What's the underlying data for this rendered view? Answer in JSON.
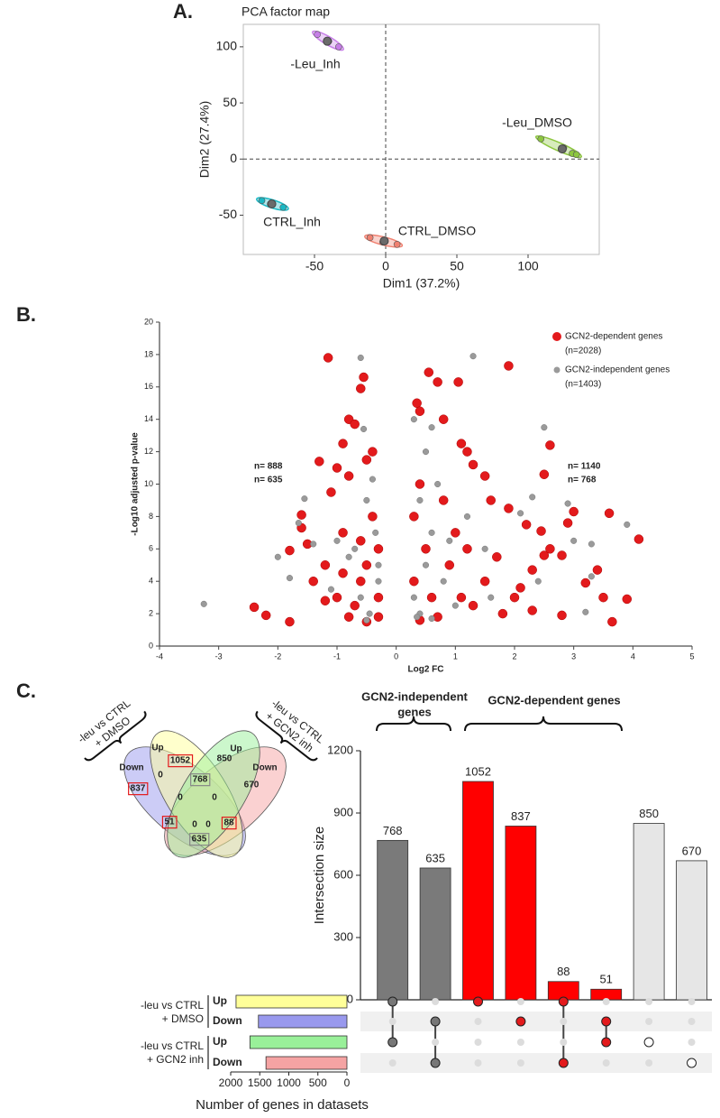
{
  "panels": [
    "A.",
    "B.",
    "C."
  ],
  "chart_data": [
    {
      "type": "scatter",
      "title": "PCA factor map",
      "xlabel": "Dim1 (37.2%)",
      "ylabel": "Dim2 (27.4%)",
      "xlim": [
        -100,
        150
      ],
      "ylim": [
        -85,
        120
      ],
      "xticks": [
        -50,
        0,
        50,
        100
      ],
      "yticks": [
        -50,
        0,
        50,
        100
      ],
      "zero_lines": true,
      "series": [
        {
          "name": "-Leu_Inh",
          "color": "#c77ee8",
          "x": [
            -48,
            -40,
            -33
          ],
          "y": [
            111,
            105,
            100
          ],
          "centroid_x": -41,
          "centroid_y": 105
        },
        {
          "name": "-Leu_DMSO",
          "color": "#8dc63f",
          "x": [
            109,
            125,
            131,
            134
          ],
          "y": [
            18,
            10,
            5,
            4
          ],
          "centroid_x": 124,
          "centroid_y": 9
        },
        {
          "name": "CTRL_Inh",
          "color": "#1ab8c4",
          "x": [
            -87,
            -81,
            -72
          ],
          "y": [
            -37,
            -40,
            -43
          ],
          "centroid_x": -80,
          "centroid_y": -40
        },
        {
          "name": "CTRL_DMSO",
          "color": "#f08070",
          "x": [
            -11,
            -2,
            8
          ],
          "y": [
            -70,
            -74,
            -76
          ],
          "centroid_x": -1,
          "centroid_y": -73
        }
      ]
    },
    {
      "type": "scatter",
      "xlabel": "Log2 FC",
      "ylabel": "-Log10 adjusted p-value",
      "xlim": [
        -4,
        5
      ],
      "ylim": [
        0,
        20
      ],
      "xticks": [
        -4,
        -3,
        -2,
        -1,
        0,
        1,
        2,
        3,
        4,
        5
      ],
      "yticks": [
        0,
        2,
        4,
        6,
        8,
        10,
        12,
        14,
        16,
        18,
        20
      ],
      "legend": "top-right",
      "series": [
        {
          "name": "GCN2-dependent genes",
          "count_label": "(n=2028)",
          "color": "#e31a1c",
          "x": [
            -1.15,
            -0.6,
            -0.55,
            -0.8,
            -0.7,
            -1.3,
            -0.9,
            -1.0,
            -1.6,
            -1.6,
            -1.5,
            -1.8,
            -2.4,
            -2.2,
            -1.8,
            -1.1,
            -0.8,
            -0.5,
            -0.4,
            -1.2,
            -0.9,
            -1.4,
            -1.0,
            -0.7,
            -0.5,
            -0.3,
            -0.4,
            -0.3,
            -0.6,
            -0.8,
            -0.5,
            -0.3,
            -0.9,
            -1.2,
            -0.6,
            0.55,
            0.35,
            0.7,
            1.05,
            1.9,
            0.4,
            0.8,
            1.2,
            1.3,
            1.1,
            1.5,
            1.6,
            2.6,
            2.5,
            1.9,
            2.2,
            2.45,
            3.0,
            2.9,
            3.6,
            2.5,
            2.8,
            2.6,
            2.3,
            2.1,
            3.2,
            3.4,
            3.5,
            3.9,
            4.1,
            3.65,
            2.8,
            0.5,
            0.8,
            0.4,
            0.3,
            0.6,
            0.9,
            1.1,
            1.3,
            1.5,
            1.8,
            0.4,
            0.7,
            1.0,
            1.2,
            0.3,
            1.7,
            2.0,
            2.3
          ],
          "y": [
            17.8,
            15.9,
            16.6,
            14,
            13.7,
            11.4,
            12.5,
            11,
            8.1,
            7.3,
            6.3,
            5.9,
            2.4,
            1.9,
            1.5,
            9.5,
            10.5,
            11.5,
            12,
            5,
            7,
            4,
            3,
            2.5,
            5,
            3,
            8,
            6,
            4,
            1.8,
            1.5,
            1.8,
            4.5,
            2.8,
            6.5,
            16.9,
            15,
            16.3,
            16.3,
            17.3,
            14.5,
            14,
            12,
            11.2,
            12.5,
            10.5,
            9,
            12.4,
            10.6,
            8.5,
            7.5,
            7.1,
            8.3,
            7.6,
            8.2,
            5.6,
            5.6,
            6,
            4.7,
            3.6,
            3.9,
            4.7,
            3.0,
            2.9,
            6.6,
            1.5,
            1.9,
            6,
            9,
            10,
            4,
            3,
            5,
            3,
            2.5,
            4,
            2,
            1.6,
            1.8,
            7,
            6,
            8,
            5.5,
            3,
            2.2
          ]
        },
        {
          "name": "GCN2-independent genes",
          "count_label": "(n=1403)",
          "color": "#9a9a9a",
          "x": [
            -3.25,
            -0.6,
            -0.55,
            -1.55,
            -1.65,
            -2.0,
            -1.4,
            -1.8,
            -1.1,
            -0.5,
            -0.4,
            -0.7,
            -0.3,
            -0.45,
            -0.3,
            -0.6,
            -0.8,
            -0.35,
            -0.5,
            -1.0,
            0.3,
            0.5,
            1.3,
            0.6,
            2.5,
            2.3,
            2.1,
            2.9,
            3.3,
            3.0,
            3.3,
            3.9,
            3.2,
            2.4,
            0.4,
            0.6,
            0.3,
            0.5,
            0.8,
            0.4,
            1.0,
            0.7,
            1.2,
            1.5,
            0.9,
            0.35,
            1.6,
            0.6
          ],
          "y": [
            2.6,
            17.8,
            13.4,
            9.1,
            7.6,
            5.5,
            6.3,
            4.2,
            3.5,
            9,
            10.3,
            6,
            5,
            2,
            4,
            3,
            5.5,
            7,
            1.6,
            6.5,
            14,
            12,
            17.9,
            13.5,
            13.5,
            9.2,
            8.2,
            8.8,
            6.3,
            6.5,
            4.3,
            7.5,
            2.1,
            4,
            9,
            7,
            3,
            5,
            4,
            2,
            2.5,
            10,
            8,
            6,
            6.5,
            1.8,
            3,
            1.7
          ]
        }
      ],
      "annotations": [
        {
          "text": "n= 888",
          "color": "#e31a1c"
        },
        {
          "text": "n= 635",
          "color": "#888888"
        },
        {
          "text": "n= 1140",
          "color": "#e31a1c"
        },
        {
          "text": "n= 768",
          "color": "#888888"
        }
      ]
    },
    {
      "type": "bar",
      "ylabel": "Intersection size",
      "ylim": [
        0,
        1200
      ],
      "yticks": [
        0,
        300,
        600,
        900,
        1200
      ],
      "values": [
        768,
        635,
        1052,
        837,
        88,
        51,
        850,
        670
      ],
      "colors": [
        "#7a7a7a",
        "#7a7a7a",
        "#ff0000",
        "#ff0000",
        "#ff0000",
        "#ff0000",
        "#e6e6e6",
        "#e6e6e6"
      ],
      "matrix": [
        [
          1,
          0,
          1,
          0
        ],
        [
          0,
          1,
          0,
          1
        ],
        [
          1,
          0,
          0,
          0
        ],
        [
          0,
          1,
          0,
          0
        ],
        [
          1,
          0,
          0,
          1
        ],
        [
          0,
          1,
          1,
          0
        ],
        [
          0,
          0,
          1,
          0
        ],
        [
          0,
          0,
          0,
          1
        ]
      ],
      "dot_colors": [
        "#777777",
        "#777777",
        "#e31a1c",
        "#e31a1c",
        "#e31a1c",
        "#e31a1c",
        "#ffffff",
        "#ffffff"
      ],
      "annotations": [
        {
          "lines": [
            "GCN2-independent",
            "genes"
          ],
          "color": "#8a8a8a"
        },
        {
          "lines": [
            "GCN2-dependent genes"
          ],
          "color": "#e31a1c"
        }
      ]
    },
    {
      "type": "barh",
      "xlabel": "Number of genes in datasets",
      "xlim": [
        2000,
        0
      ],
      "xticks": [
        2000,
        1500,
        1000,
        500,
        0
      ],
      "categories": [
        "Up",
        "Down",
        "Up",
        "Down"
      ],
      "label_colors": [
        "#e0a820",
        "#3a7bd5",
        "#1a9a1a",
        "#e36a6a"
      ],
      "colors": [
        "#ffff99",
        "#9999ee",
        "#99f099",
        "#f5a3a3"
      ],
      "values": [
        1908,
        1523,
        1669,
        1393
      ],
      "groups": [
        {
          "lines": [
            "-leu vs CTRL",
            "+ DMSO"
          ]
        },
        {
          "lines": [
            "-leu vs CTRL",
            "+ GCN2 inh"
          ]
        }
      ]
    }
  ],
  "venn": {
    "set_labels": [
      "Up",
      "Down",
      "Up",
      "Down"
    ],
    "set_colors": [
      "#e0a820",
      "#3a7bd5",
      "#1a9a1a",
      "#e36a6a"
    ],
    "fill_colors": [
      "#ffff99",
      "#9999ee",
      "#99f099",
      "#f5a3a3"
    ],
    "groups": [
      {
        "lines": [
          "-leu vs CTRL",
          "+ DMSO"
        ]
      },
      {
        "lines": [
          "-leu vs CTRL",
          "+ GCN2 inh"
        ]
      }
    ],
    "regions": [
      {
        "value": 1052,
        "box": "#e31a1c"
      },
      {
        "value": 837,
        "box": "#e31a1c"
      },
      {
        "value": 850,
        "box": null
      },
      {
        "value": 670,
        "box": null
      },
      {
        "value": 768,
        "box": "#888888"
      },
      {
        "value": 0,
        "box": null
      },
      {
        "value": 0,
        "box": null
      },
      {
        "value": 0,
        "box": null
      },
      {
        "value": 0,
        "box": null
      },
      {
        "value": 0,
        "box": null
      },
      {
        "value": 51,
        "box": "#e31a1c"
      },
      {
        "value": 88,
        "box": "#e31a1c"
      },
      {
        "value": 635,
        "box": "#888888"
      }
    ]
  }
}
